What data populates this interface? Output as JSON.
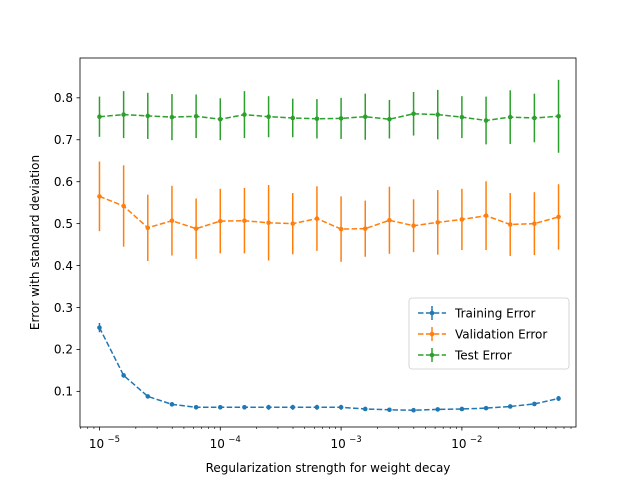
{
  "chart_data": {
    "type": "line",
    "xlabel": "Regularization strength for weight decay",
    "ylabel": "Error with standard deviation",
    "xscale": "log",
    "xlim": [
      6.9e-06,
      0.088
    ],
    "ylim": [
      0.015,
      0.895
    ],
    "grid": false,
    "legend_position": "center-right",
    "x": [
      1e-05,
      1.585e-05,
      2.512e-05,
      3.981e-05,
      6.31e-05,
      0.0001,
      0.0001585,
      0.0002512,
      0.0003981,
      0.000631,
      0.001,
      0.001585,
      0.002512,
      0.003981,
      0.00631,
      0.01,
      0.01585,
      0.02512,
      0.03981,
      0.0631
    ],
    "x_ticks": [
      {
        "value": 1e-05,
        "base": "10",
        "exp": "−5"
      },
      {
        "value": 0.0001,
        "base": "10",
        "exp": "−4"
      },
      {
        "value": 0.001,
        "base": "10",
        "exp": "−3"
      },
      {
        "value": 0.01,
        "base": "10",
        "exp": "−2"
      }
    ],
    "y_ticks": [
      "0.1",
      "0.2",
      "0.3",
      "0.4",
      "0.5",
      "0.6",
      "0.7",
      "0.8"
    ],
    "series": [
      {
        "name": "Training Error",
        "color": "#1f77b4",
        "values": [
          0.252,
          0.138,
          0.088,
          0.069,
          0.062,
          0.062,
          0.062,
          0.062,
          0.062,
          0.062,
          0.062,
          0.058,
          0.056,
          0.055,
          0.057,
          0.058,
          0.06,
          0.064,
          0.07,
          0.083
        ],
        "errors": [
          0.011,
          0.005,
          0.004,
          0.004,
          0.005,
          0.005,
          0.005,
          0.006,
          0.006,
          0.006,
          0.006,
          0.004,
          0.004,
          0.004,
          0.004,
          0.004,
          0.004,
          0.004,
          0.004,
          0.006
        ]
      },
      {
        "name": "Validation Error",
        "color": "#ff7f0e",
        "values": [
          0.565,
          0.542,
          0.49,
          0.507,
          0.488,
          0.506,
          0.507,
          0.502,
          0.5,
          0.512,
          0.487,
          0.488,
          0.508,
          0.495,
          0.503,
          0.51,
          0.519,
          0.498,
          0.5,
          0.516
        ],
        "errors": [
          0.083,
          0.097,
          0.079,
          0.083,
          0.072,
          0.077,
          0.078,
          0.09,
          0.073,
          0.077,
          0.078,
          0.067,
          0.08,
          0.063,
          0.077,
          0.073,
          0.082,
          0.075,
          0.075,
          0.078
        ]
      },
      {
        "name": "Test Error",
        "color": "#2ca02c",
        "values": [
          0.755,
          0.76,
          0.757,
          0.754,
          0.756,
          0.749,
          0.76,
          0.755,
          0.752,
          0.75,
          0.751,
          0.755,
          0.749,
          0.762,
          0.76,
          0.754,
          0.746,
          0.754,
          0.752,
          0.756
        ],
        "errors": [
          0.048,
          0.056,
          0.055,
          0.055,
          0.052,
          0.05,
          0.056,
          0.049,
          0.046,
          0.047,
          0.049,
          0.055,
          0.046,
          0.052,
          0.059,
          0.05,
          0.057,
          0.064,
          0.058,
          0.087
        ]
      }
    ]
  }
}
